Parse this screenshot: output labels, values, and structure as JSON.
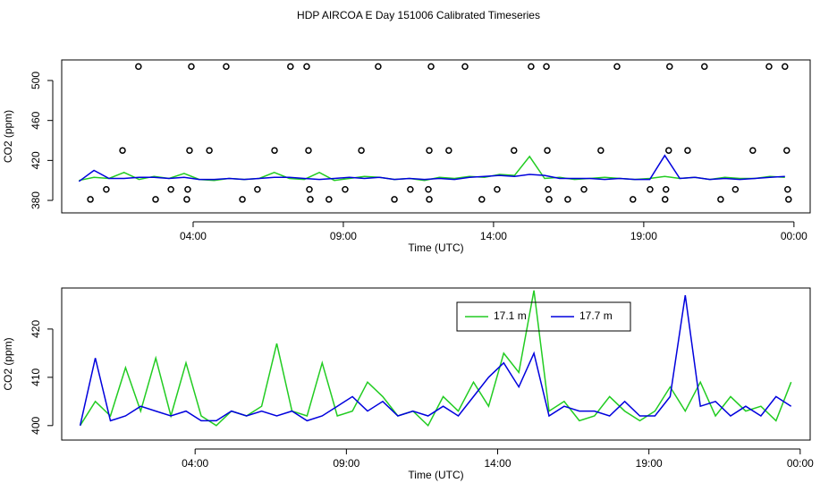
{
  "title": "HDP AIRCOA E  Day 151006  Calibrated Timeseries",
  "chart_data": [
    {
      "type": "line",
      "xlabel": "Time (UTC)",
      "ylabel": "CO2 (ppm)",
      "xlim": [
        -0.375,
        24.54
      ],
      "ylim": [
        367.5,
        520.6
      ],
      "xticks": [
        {
          "value": 4,
          "label": "04:00"
        },
        {
          "value": 9,
          "label": "09:00"
        },
        {
          "value": 14,
          "label": "14:00"
        },
        {
          "value": 19,
          "label": "19:00"
        },
        {
          "value": 24,
          "label": "00:00"
        }
      ],
      "yticks": [
        380,
        420,
        460,
        500
      ],
      "series": [
        {
          "color": "#22cc22",
          "x": [
            0.2,
            0.7,
            1.2,
            1.7,
            2.2,
            2.7,
            3.2,
            3.7,
            4.2,
            4.7,
            5.2,
            5.7,
            6.2,
            6.7,
            7.2,
            7.7,
            8.2,
            8.7,
            9.2,
            9.7,
            10.2,
            10.7,
            11.2,
            11.7,
            12.2,
            12.7,
            13.2,
            13.7,
            14.2,
            14.7,
            15.2,
            15.7,
            16.2,
            16.7,
            17.2,
            17.7,
            18.2,
            18.7,
            19.2,
            19.7,
            20.2,
            20.7,
            21.2,
            21.7,
            22.2,
            22.7,
            23.2,
            23.7
          ],
          "values": [
            400,
            403,
            402,
            408,
            401,
            404,
            402,
            407,
            401,
            400,
            402,
            401,
            402,
            408,
            402,
            401,
            408,
            400,
            402,
            404,
            403,
            401,
            402,
            400,
            403,
            402,
            404,
            403,
            406,
            405,
            424,
            402,
            403,
            401,
            402,
            403,
            402,
            401,
            402,
            404,
            402,
            403,
            401,
            403,
            402,
            402,
            404,
            403
          ]
        },
        {
          "color": "#0000dd",
          "x": [
            0.2,
            0.7,
            1.2,
            1.7,
            2.2,
            2.7,
            3.2,
            3.7,
            4.2,
            4.7,
            5.2,
            5.7,
            6.2,
            6.7,
            7.2,
            7.7,
            8.2,
            8.7,
            9.2,
            9.7,
            10.2,
            10.7,
            11.2,
            11.7,
            12.2,
            12.7,
            13.2,
            13.7,
            14.2,
            14.7,
            15.2,
            15.7,
            16.2,
            16.7,
            17.2,
            17.7,
            18.2,
            18.7,
            19.2,
            19.7,
            20.2,
            20.7,
            21.2,
            21.7,
            22.2,
            22.7,
            23.2,
            23.7
          ],
          "values": [
            399,
            410,
            402,
            402,
            403,
            403,
            402,
            403,
            401,
            401,
            402,
            401,
            402,
            403,
            403,
            402,
            401,
            402,
            403,
            402,
            403,
            401,
            402,
            401,
            402,
            401,
            403,
            404,
            405,
            404,
            406,
            405,
            402,
            402,
            402,
            401,
            402,
            401,
            401,
            425,
            402,
            403,
            401,
            402,
            401,
            402,
            403,
            404
          ]
        },
        {
          "color": "#000000",
          "marker": "circle",
          "x": [
            2.18,
            3.94,
            5.1,
            7.24,
            7.78,
            10.16,
            11.92,
            13.05,
            15.25,
            15.76,
            18.11,
            19.86,
            21.02,
            23.17,
            23.7,
            1.65,
            3.88,
            4.54,
            6.71,
            7.84,
            9.6,
            11.86,
            12.51,
            14.68,
            15.79,
            17.57,
            19.83,
            20.46,
            22.63,
            23.76,
            1.11,
            3.26,
            3.82,
            6.14,
            7.87,
            9.06,
            11.23,
            11.83,
            14.12,
            15.82,
            17.01,
            19.21,
            19.74,
            22.05,
            23.79,
            0.58,
            2.75,
            3.79,
            5.64,
            7.9,
            8.52,
            10.7,
            11.86,
            13.61,
            15.85,
            16.47,
            18.64,
            19.71,
            21.56,
            23.82
          ],
          "values": [
            514,
            514,
            514,
            514,
            514,
            514,
            514,
            514,
            514,
            514,
            514,
            514,
            514,
            514,
            514,
            430,
            430,
            430,
            430,
            430,
            430,
            430,
            430,
            430,
            430,
            430,
            430,
            430,
            430,
            430,
            391,
            391,
            391,
            391,
            391,
            391,
            391,
            391,
            391,
            391,
            391,
            391,
            391,
            391,
            391,
            381,
            381,
            381,
            381,
            381,
            381,
            381,
            381,
            381,
            381,
            381,
            381,
            381,
            381,
            381
          ]
        }
      ]
    },
    {
      "type": "line",
      "xlabel": "Time (UTC)",
      "ylabel": "CO2 (ppm)",
      "xlim": [
        -0.41,
        24.33
      ],
      "ylim": [
        397.0,
        428.5
      ],
      "xticks": [
        {
          "value": 4,
          "label": "04:00"
        },
        {
          "value": 9,
          "label": "09:00"
        },
        {
          "value": 14,
          "label": "14:00"
        },
        {
          "value": 19,
          "label": "19:00"
        },
        {
          "value": 24,
          "label": "00:00"
        }
      ],
      "yticks": [
        400,
        410,
        420
      ],
      "legend": "top",
      "series": [
        {
          "name": "17.1 m",
          "color": "#22cc22",
          "x": [
            0.2,
            0.7,
            1.2,
            1.7,
            2.2,
            2.7,
            3.2,
            3.7,
            4.2,
            4.7,
            5.2,
            5.7,
            6.2,
            6.7,
            7.2,
            7.7,
            8.2,
            8.7,
            9.2,
            9.7,
            10.2,
            10.7,
            11.2,
            11.7,
            12.2,
            12.7,
            13.2,
            13.7,
            14.2,
            14.7,
            15.2,
            15.7,
            16.2,
            16.7,
            17.2,
            17.7,
            18.2,
            18.7,
            19.2,
            19.7,
            20.2,
            20.7,
            21.2,
            21.7,
            22.2,
            22.7,
            23.2,
            23.7
          ],
          "values": [
            400,
            405,
            402,
            412,
            403,
            414,
            402,
            413,
            402,
            400,
            403,
            402,
            404,
            417,
            403,
            402,
            413,
            402,
            403,
            409,
            406,
            402,
            403,
            400,
            406,
            403,
            409,
            404,
            415,
            411,
            428,
            403,
            405,
            401,
            402,
            406,
            403,
            401,
            403,
            408,
            403,
            409,
            402,
            406,
            403,
            404,
            401,
            409
          ]
        },
        {
          "name": "17.7 m",
          "color": "#0000dd",
          "x": [
            0.2,
            0.7,
            1.2,
            1.7,
            2.2,
            2.7,
            3.2,
            3.7,
            4.2,
            4.7,
            5.2,
            5.7,
            6.2,
            6.7,
            7.2,
            7.7,
            8.2,
            8.7,
            9.2,
            9.7,
            10.2,
            10.7,
            11.2,
            11.7,
            12.2,
            12.7,
            13.2,
            13.7,
            14.2,
            14.7,
            15.2,
            15.7,
            16.2,
            16.7,
            17.2,
            17.7,
            18.2,
            18.7,
            19.2,
            19.7,
            20.2,
            20.7,
            21.2,
            21.7,
            22.2,
            22.7,
            23.2,
            23.7
          ],
          "values": [
            400,
            414,
            401,
            402,
            404,
            403,
            402,
            403,
            401,
            401,
            403,
            402,
            403,
            402,
            403,
            401,
            402,
            404,
            406,
            403,
            405,
            402,
            403,
            402,
            404,
            402,
            406,
            410,
            413,
            408,
            415,
            402,
            404,
            403,
            403,
            402,
            405,
            402,
            402,
            406,
            427,
            404,
            405,
            402,
            404,
            402,
            406,
            404
          ]
        }
      ]
    }
  ]
}
